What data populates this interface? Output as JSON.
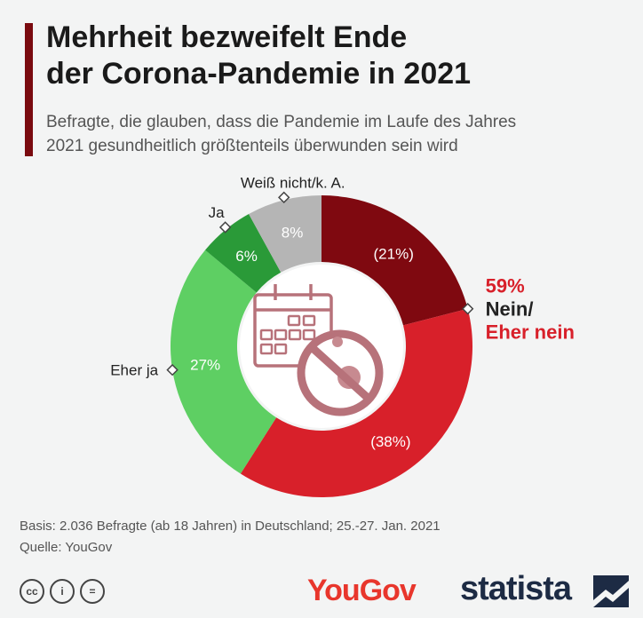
{
  "header": {
    "title": "Mehrheit bezweifelt Ende\nder Corona-Pandemie in 2021",
    "subtitle": "Befragte, die glauben, dass die Pandemie im Laufe des Jahres\n2021 gesundheitlich größtenteils überwunden sein wird"
  },
  "chart_data": {
    "type": "pie",
    "variant": "donut",
    "slices": [
      {
        "label": "",
        "value": 21,
        "value_label": "(21%)",
        "color": "#7f0910"
      },
      {
        "label": "",
        "value": 38,
        "value_label": "(38%)",
        "color": "#d8202a"
      },
      {
        "label": "Eher ja",
        "value": 27,
        "value_label": "27%",
        "color": "#5ecf63"
      },
      {
        "label": "Ja",
        "value": 6,
        "value_label": "6%",
        "color": "#2a9a38"
      },
      {
        "label": "Weiß nicht/k. A.",
        "value": 8,
        "value_label": "8%",
        "color": "#b5b5b5"
      }
    ],
    "group_annotation": {
      "value_label": "59%",
      "line1": "Nein/",
      "line2": "Eher nein",
      "color": "#d8202a"
    },
    "center_icon": "calendar-with-no-virus-icon"
  },
  "footer": {
    "basis": "Basis: 2.036 Befragte (ab 18 Jahren) in Deutschland; 25.-27. Jan. 2021",
    "source": "Quelle: YouGov",
    "license_icons": [
      "cc-icon",
      "by-icon",
      "nd-icon"
    ],
    "cc_label": "cc",
    "by_label": "i",
    "nd_label": "=",
    "yougov_logo": "YouGov",
    "statista_logo": "statista"
  }
}
